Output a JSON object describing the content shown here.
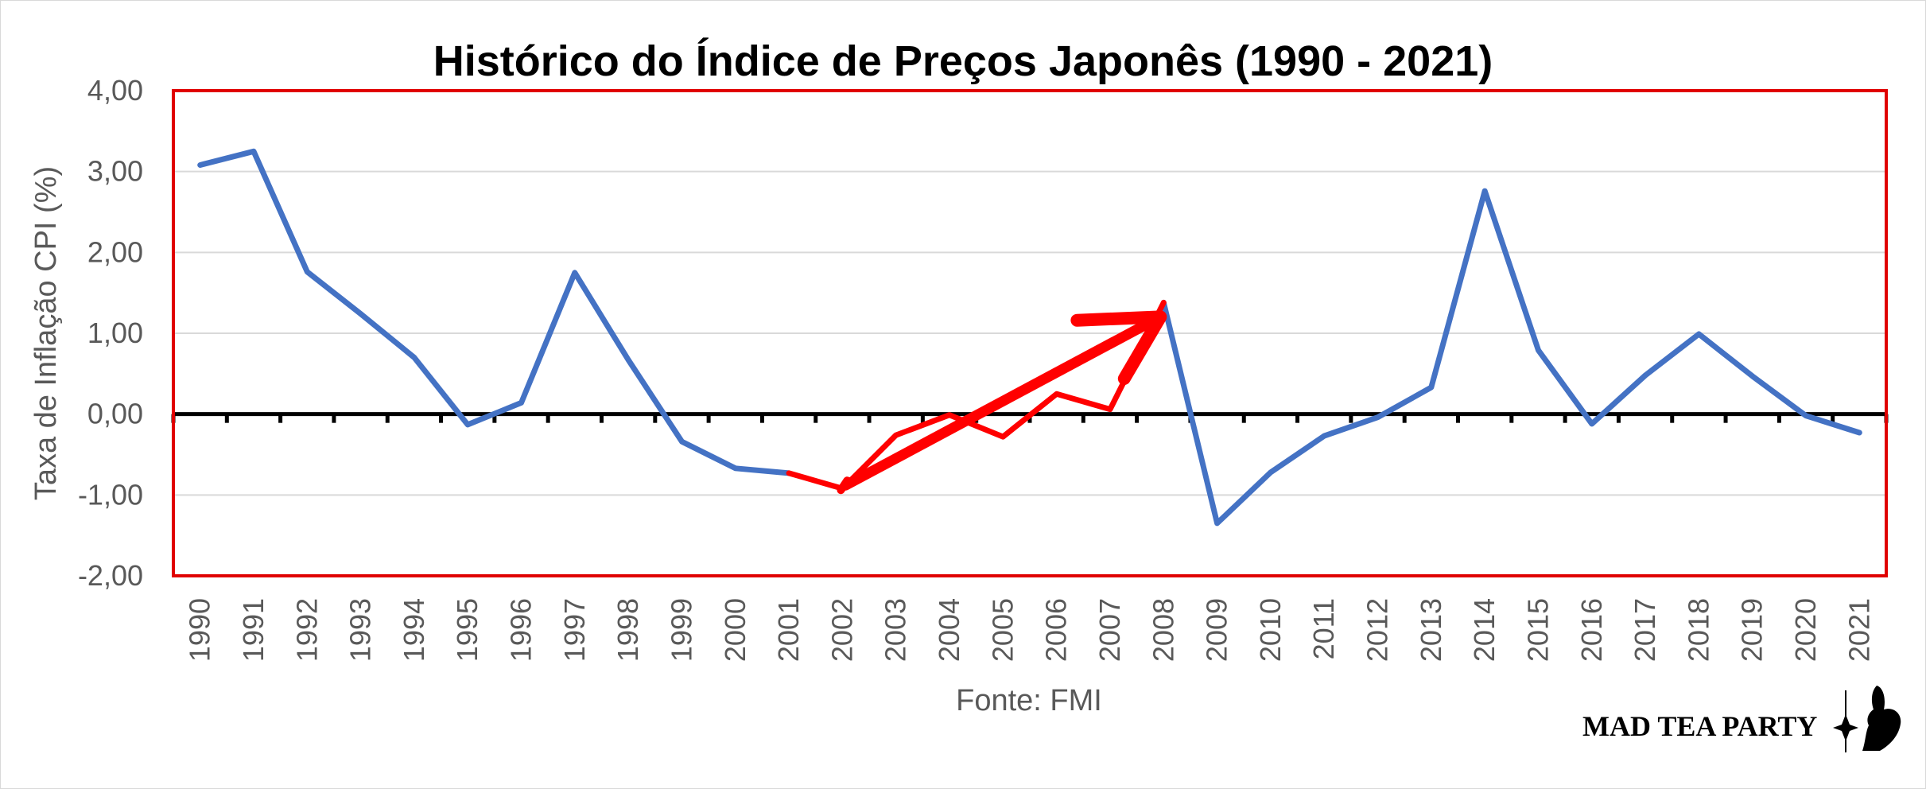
{
  "chart_data": {
    "type": "line",
    "title": "Histórico do Índice de Preços Japonês (1990 - 2021)",
    "xlabel": "Fonte: FMI",
    "ylabel": "Taxa de Inflação CPI (%)",
    "ylim": [
      -2,
      4
    ],
    "yticks": [
      -2,
      -1,
      0,
      1,
      2,
      3,
      4
    ],
    "ytick_labels": [
      "-2,00",
      "-1,00",
      "0,00",
      "1,00",
      "2,00",
      "3,00",
      "4,00"
    ],
    "categories": [
      "1990",
      "1991",
      "1992",
      "1993",
      "1994",
      "1995",
      "1996",
      "1997",
      "1998",
      "1999",
      "2000",
      "2001",
      "2002",
      "2003",
      "2004",
      "2005",
      "2006",
      "2007",
      "2008",
      "2009",
      "2010",
      "2011",
      "2012",
      "2013",
      "2014",
      "2015",
      "2016",
      "2017",
      "2018",
      "2019",
      "2020",
      "2021"
    ],
    "series": [
      {
        "name": "CPI",
        "values": [
          3.08,
          3.25,
          1.76,
          1.24,
          0.7,
          -0.13,
          0.14,
          1.75,
          0.67,
          -0.34,
          -0.67,
          -0.73,
          -0.92,
          -0.26,
          -0.01,
          -0.28,
          0.25,
          0.06,
          1.38,
          -1.35,
          -0.72,
          -0.27,
          -0.04,
          0.33,
          2.76,
          0.79,
          -0.12,
          0.48,
          0.99,
          0.47,
          -0.02,
          -0.23
        ],
        "color": "#4472c4",
        "highlight_color": "#ff0000",
        "highlight_range": [
          "2001",
          "2008"
        ]
      }
    ],
    "zero_line": true,
    "grid": true,
    "annotation": {
      "type": "arrow",
      "from": "2002",
      "to": "2008",
      "color": "#ff0000"
    },
    "plot_border_color": "#e00000"
  },
  "brand": {
    "text": "MAD TEA PARTY"
  }
}
